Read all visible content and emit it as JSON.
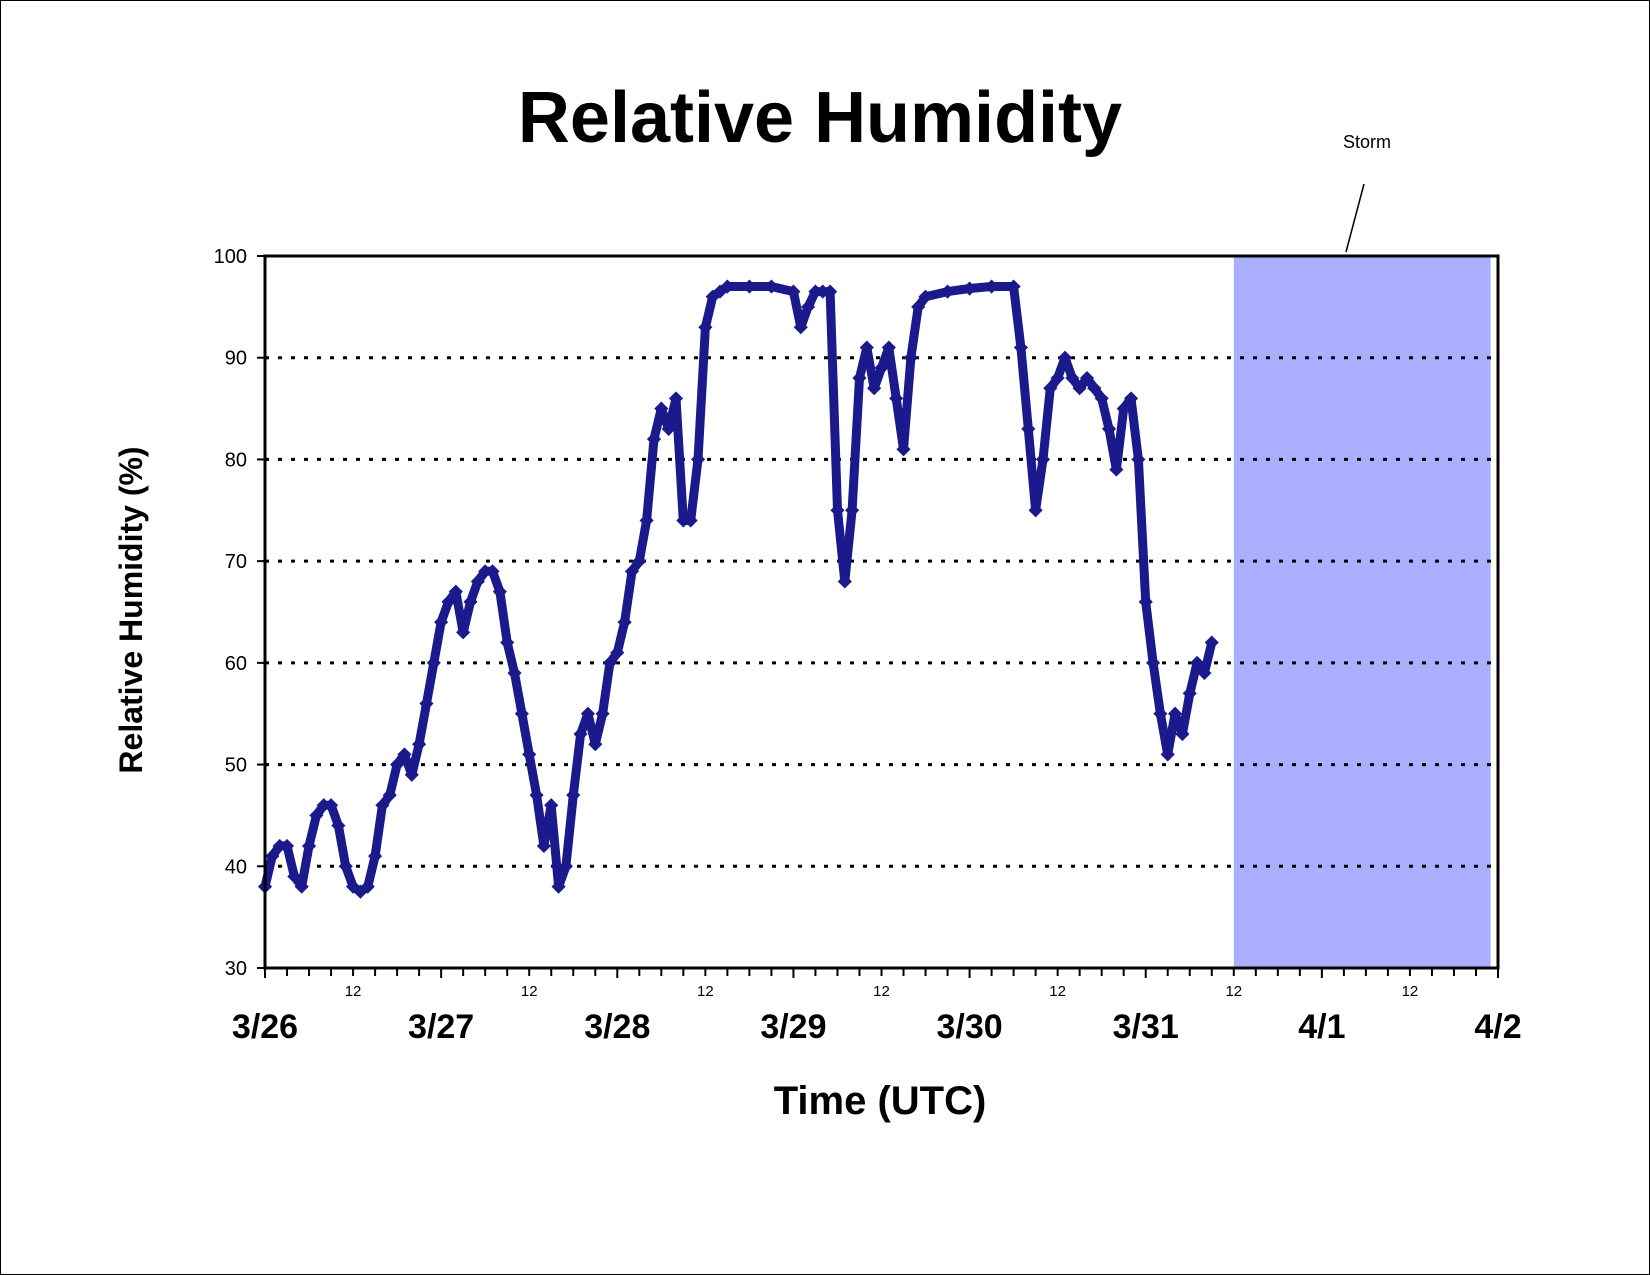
{
  "chart_data": {
    "type": "scatter",
    "title": "Relative Humidity",
    "xlabel": "Time (UTC)",
    "ylabel": "Relative Humidity (%)",
    "ylim": [
      30,
      100
    ],
    "yticks": [
      "30",
      "40",
      "50",
      "60",
      "70",
      "80",
      "90",
      "100"
    ],
    "x_major_labels": [
      "3/26",
      "3/27",
      "3/28",
      "3/29",
      "3/30",
      "3/31",
      "4/1",
      "4/2"
    ],
    "x_minor_label": "12",
    "xlim": [
      "3/26 00:00",
      "4/2 00:00"
    ],
    "grid": "horizontal dotted",
    "line_color": "#1a1a8c",
    "shade_color": "#aab0ff",
    "annotations": [
      {
        "text": "Storm",
        "x_start": "3/31 12:00",
        "x_end": "4/1 23:00"
      }
    ],
    "series": [
      {
        "points": [
          [
            "3/26 00:00",
            38
          ],
          [
            "3/26 01:00",
            41
          ],
          [
            "3/26 02:00",
            42
          ],
          [
            "3/26 03:00",
            42
          ],
          [
            "3/26 04:00",
            39
          ],
          [
            "3/26 05:00",
            38
          ],
          [
            "3/26 06:00",
            42
          ],
          [
            "3/26 07:00",
            45
          ],
          [
            "3/26 08:00",
            46
          ],
          [
            "3/26 09:00",
            46
          ],
          [
            "3/26 10:00",
            44
          ],
          [
            "3/26 11:00",
            40
          ],
          [
            "3/26 12:00",
            38
          ],
          [
            "3/26 13:00",
            37.5
          ],
          [
            "3/26 14:00",
            38
          ],
          [
            "3/26 15:00",
            41
          ],
          [
            "3/26 16:00",
            46
          ],
          [
            "3/26 17:00",
            47
          ],
          [
            "3/26 18:00",
            50
          ],
          [
            "3/26 19:00",
            51
          ],
          [
            "3/26 20:00",
            49
          ],
          [
            "3/26 21:00",
            52
          ],
          [
            "3/26 22:00",
            56
          ],
          [
            "3/26 23:00",
            60
          ],
          [
            "3/27 00:00",
            64
          ],
          [
            "3/27 01:00",
            66
          ],
          [
            "3/27 02:00",
            67
          ],
          [
            "3/27 03:00",
            63
          ],
          [
            "3/27 04:00",
            66
          ],
          [
            "3/27 05:00",
            68
          ],
          [
            "3/27 06:00",
            69
          ],
          [
            "3/27 07:00",
            69
          ],
          [
            "3/27 08:00",
            67
          ],
          [
            "3/27 09:00",
            62
          ],
          [
            "3/27 10:00",
            59
          ],
          [
            "3/27 11:00",
            55
          ],
          [
            "3/27 12:00",
            51
          ],
          [
            "3/27 13:00",
            47
          ],
          [
            "3/27 14:00",
            42
          ],
          [
            "3/27 15:00",
            46
          ],
          [
            "3/27 16:00",
            38
          ],
          [
            "3/27 17:00",
            40
          ],
          [
            "3/27 18:00",
            47
          ],
          [
            "3/27 19:00",
            53
          ],
          [
            "3/27 20:00",
            55
          ],
          [
            "3/27 21:00",
            52
          ],
          [
            "3/27 22:00",
            55
          ],
          [
            "3/27 23:00",
            60
          ],
          [
            "3/28 00:00",
            61
          ],
          [
            "3/28 01:00",
            64
          ],
          [
            "3/28 02:00",
            69
          ],
          [
            "3/28 03:00",
            70
          ],
          [
            "3/28 04:00",
            74
          ],
          [
            "3/28 05:00",
            82
          ],
          [
            "3/28 06:00",
            85
          ],
          [
            "3/28 07:00",
            83
          ],
          [
            "3/28 08:00",
            86
          ],
          [
            "3/28 09:00",
            74
          ],
          [
            "3/28 10:00",
            74
          ],
          [
            "3/28 11:00",
            80
          ],
          [
            "3/28 12:00",
            93
          ],
          [
            "3/28 13:00",
            96
          ],
          [
            "3/28 14:00",
            96.5
          ],
          [
            "3/28 15:00",
            97
          ],
          [
            "3/28 18:00",
            97
          ],
          [
            "3/28 21:00",
            97
          ],
          [
            "3/29 00:00",
            96.5
          ],
          [
            "3/29 01:00",
            93
          ],
          [
            "3/29 02:00",
            95
          ],
          [
            "3/29 03:00",
            96.5
          ],
          [
            "3/29 04:00",
            96.5
          ],
          [
            "3/29 05:00",
            96.5
          ],
          [
            "3/29 06:00",
            75
          ],
          [
            "3/29 07:00",
            68
          ],
          [
            "3/29 08:00",
            75
          ],
          [
            "3/29 09:00",
            88
          ],
          [
            "3/29 10:00",
            91
          ],
          [
            "3/29 11:00",
            87
          ],
          [
            "3/29 12:00",
            89
          ],
          [
            "3/29 13:00",
            91
          ],
          [
            "3/29 14:00",
            86
          ],
          [
            "3/29 15:00",
            81
          ],
          [
            "3/29 16:00",
            90
          ],
          [
            "3/29 17:00",
            95
          ],
          [
            "3/29 18:00",
            96
          ],
          [
            "3/29 21:00",
            96.5
          ],
          [
            "3/30 00:00",
            96.8
          ],
          [
            "3/30 03:00",
            97
          ],
          [
            "3/30 06:00",
            97
          ],
          [
            "3/30 07:00",
            91
          ],
          [
            "3/30 08:00",
            83
          ],
          [
            "3/30 09:00",
            75
          ],
          [
            "3/30 10:00",
            80
          ],
          [
            "3/30 11:00",
            87
          ],
          [
            "3/30 12:00",
            88
          ],
          [
            "3/30 13:00",
            90
          ],
          [
            "3/30 14:00",
            88
          ],
          [
            "3/30 15:00",
            87
          ],
          [
            "3/30 16:00",
            88
          ],
          [
            "3/30 17:00",
            87
          ],
          [
            "3/30 18:00",
            86
          ],
          [
            "3/30 19:00",
            83
          ],
          [
            "3/30 20:00",
            79
          ],
          [
            "3/30 21:00",
            85
          ],
          [
            "3/30 22:00",
            86
          ],
          [
            "3/30 23:00",
            80
          ],
          [
            "3/31 00:00",
            66
          ],
          [
            "3/31 01:00",
            60
          ],
          [
            "3/31 02:00",
            55
          ],
          [
            "3/31 03:00",
            51
          ],
          [
            "3/31 04:00",
            55
          ],
          [
            "3/31 05:00",
            53
          ],
          [
            "3/31 06:00",
            57
          ],
          [
            "3/31 07:00",
            60
          ],
          [
            "3/31 08:00",
            59
          ],
          [
            "3/31 09:00",
            62
          ]
        ]
      }
    ]
  }
}
